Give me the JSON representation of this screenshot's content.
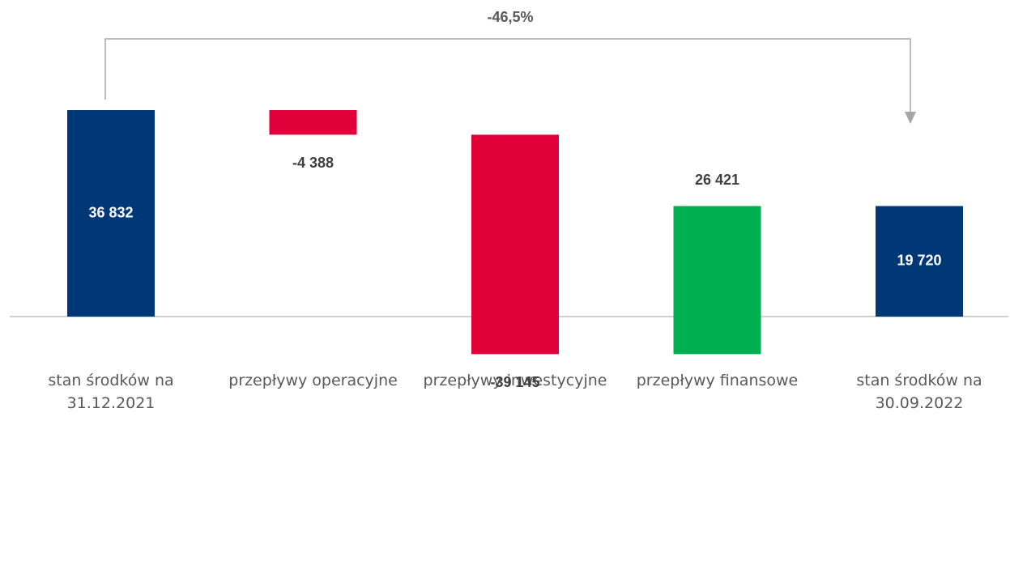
{
  "chart_data": {
    "type": "waterfall",
    "annotation": "-46,5%",
    "categories": [
      "stan środków na 31.12.2021",
      "przepływy operacyjne",
      "przepływy inwestycyjne",
      "przepływy finansowe",
      "stan środków na 30.09.2022"
    ],
    "measure": [
      "absolute",
      "relative",
      "relative",
      "relative",
      "total"
    ],
    "values": [
      36832,
      -4388,
      -39145,
      26421,
      19720
    ],
    "value_labels": [
      "36 832",
      "-4 388",
      "-39 145",
      "26 421",
      "19 720"
    ],
    "colors": [
      "#003776",
      "#e1003a",
      "#e1003a",
      "#00b050",
      "#003776"
    ]
  }
}
